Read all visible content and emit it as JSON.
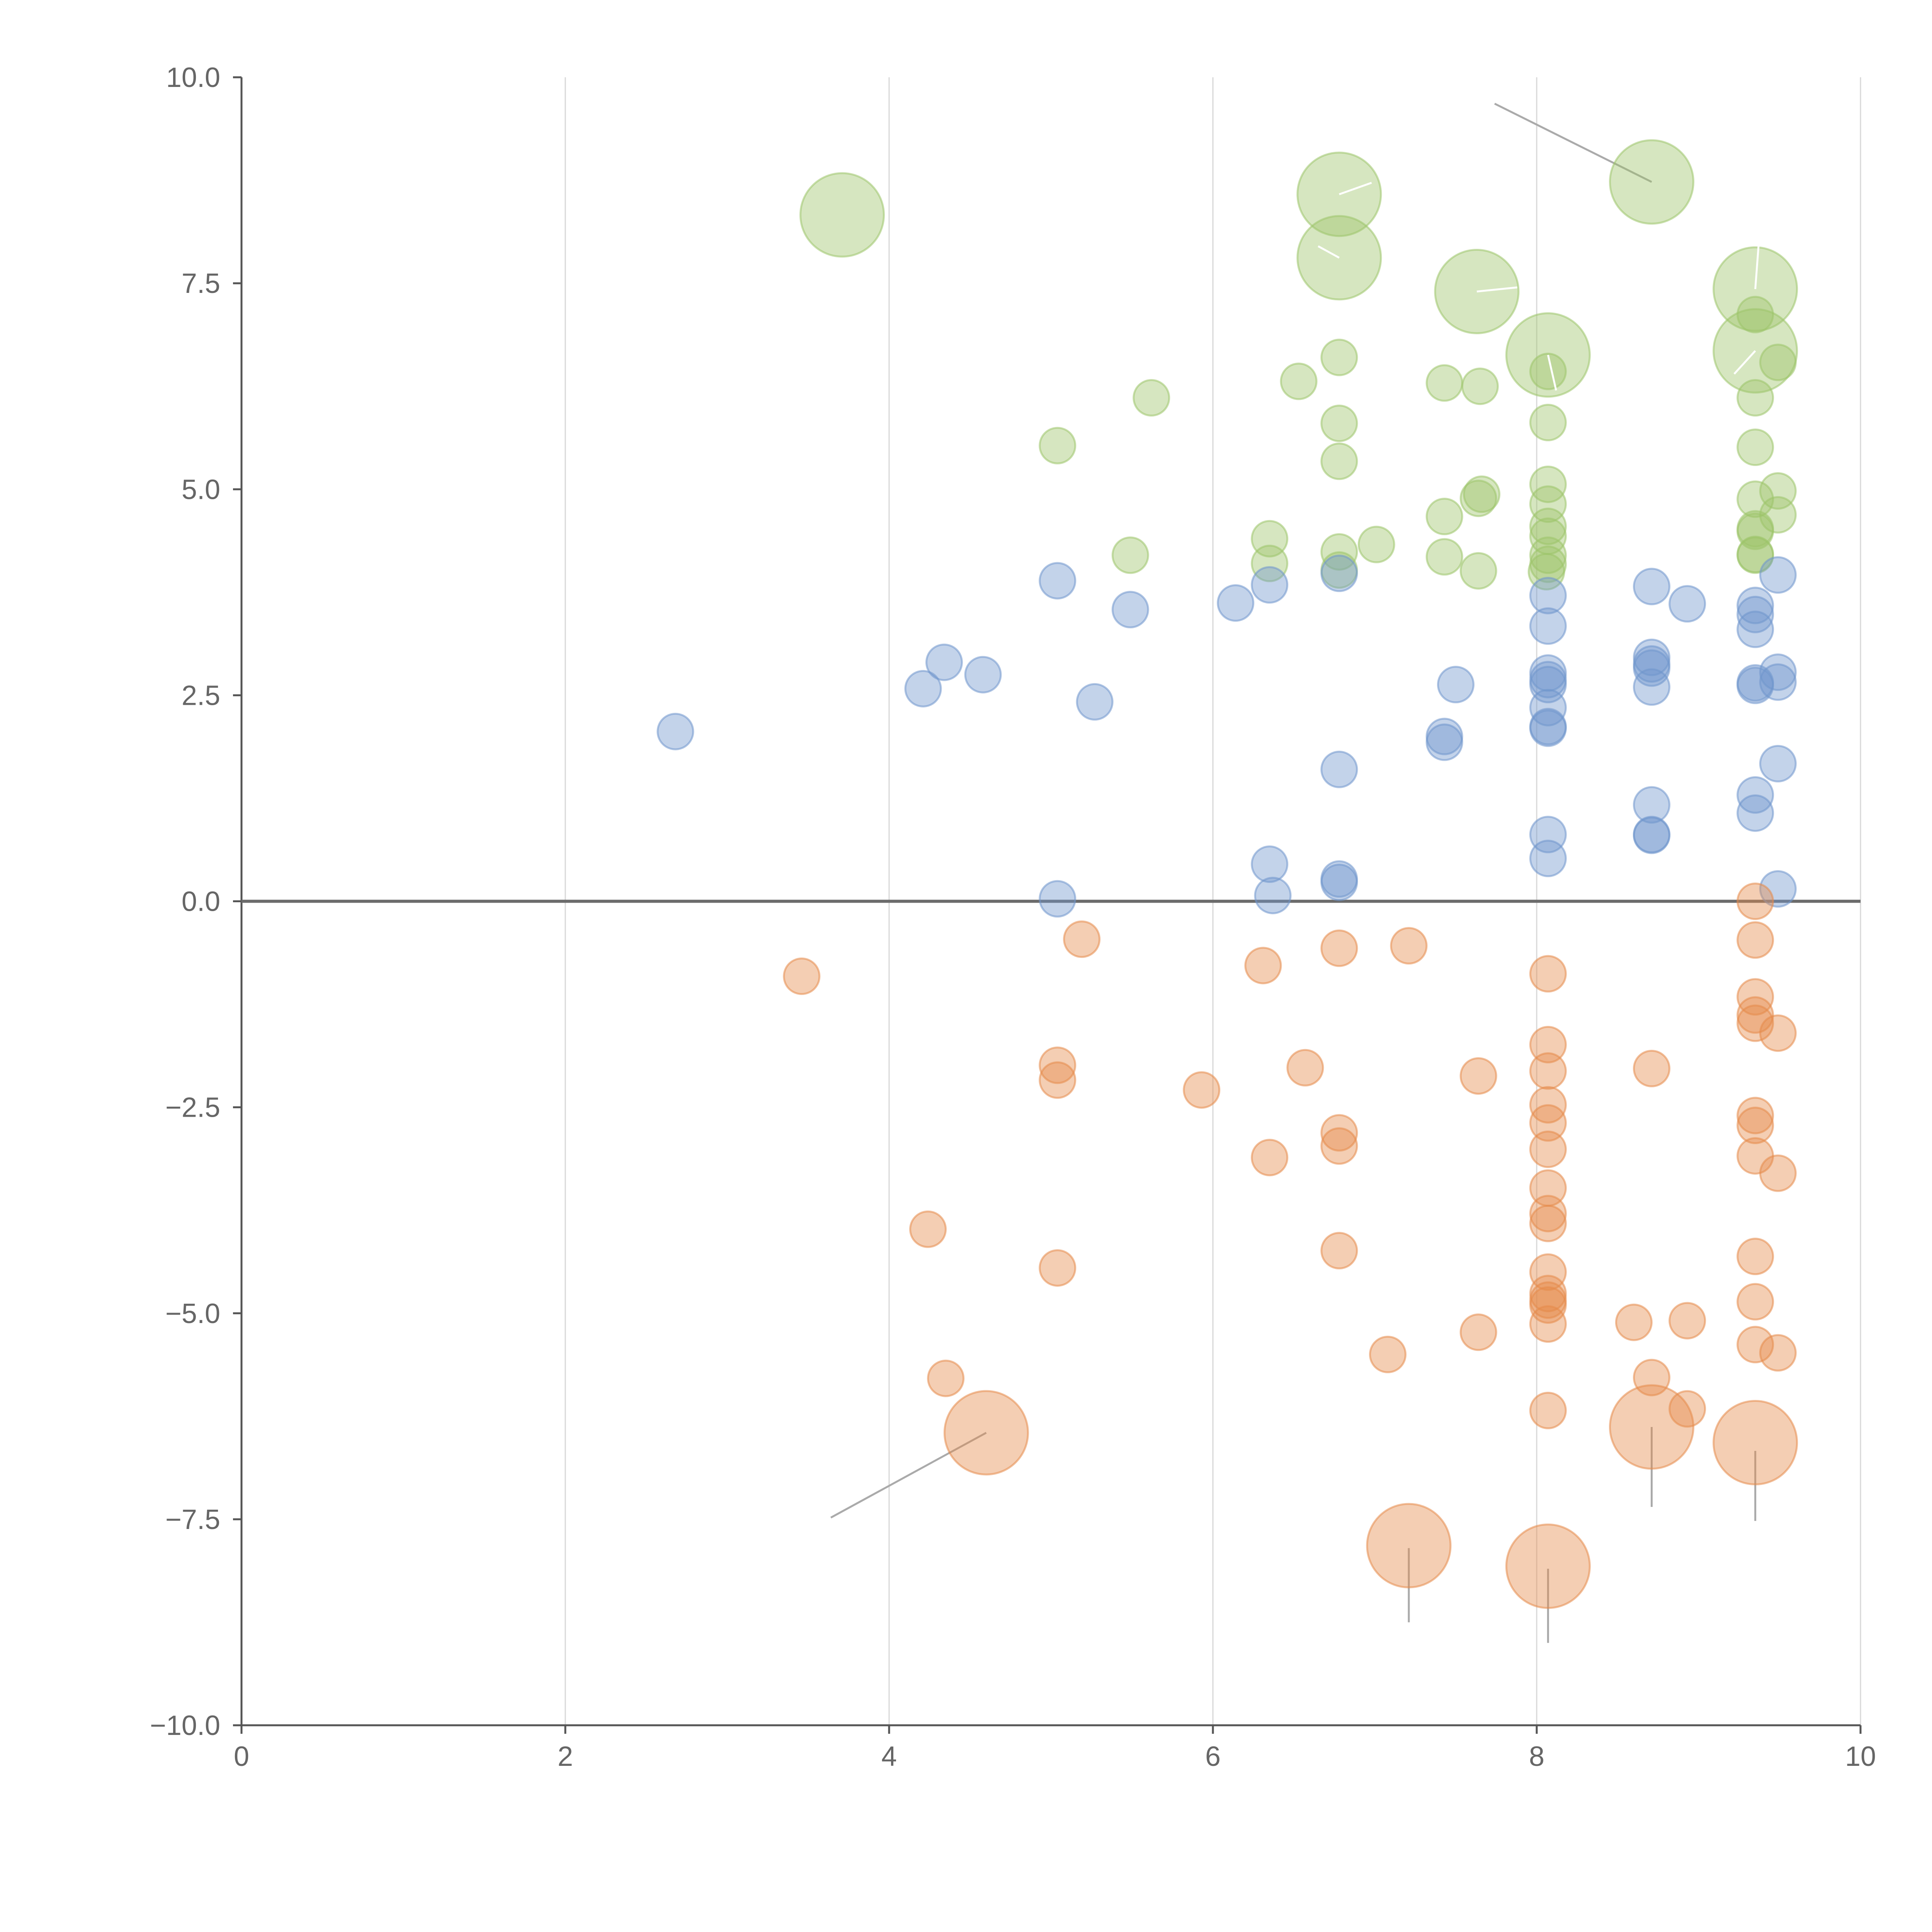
{
  "colors": {
    "positive_high": "#9dc46a",
    "positive_low": "#6f96cc",
    "negative": "#e58b4b",
    "axis": "#555555",
    "grid": "#d7d7d7"
  },
  "chart_data": {
    "type": "scatter",
    "xlim": [
      0,
      10
    ],
    "ylim": [
      -10,
      10
    ],
    "grid": "vertical",
    "xticks": [
      0,
      2,
      4,
      6,
      8,
      10
    ],
    "yticks": [
      -10,
      -7.5,
      -5,
      -2.5,
      0,
      2.5,
      5,
      7.5,
      10
    ],
    "xtick_labels": [
      "0",
      "2",
      "4",
      "6",
      "8",
      "10"
    ],
    "ytick_labels": [
      "−10.0",
      "−7.5",
      "−5.0",
      "−2.5",
      "0.0",
      "2.5",
      "5.0",
      "7.5",
      "10.0"
    ],
    "series": [
      {
        "color": "#9dc46a",
        "points": [
          [
            3.71,
            8.33,
            1
          ],
          [
            6.78,
            8.58,
            1
          ],
          [
            6.78,
            7.81,
            1
          ],
          [
            8.71,
            8.73,
            1
          ],
          [
            7.63,
            7.4,
            1
          ],
          [
            9.35,
            7.43,
            1
          ],
          [
            8.07,
            6.63,
            1
          ],
          [
            9.35,
            6.68,
            1
          ],
          [
            5.62,
            6.11,
            0
          ],
          [
            5.04,
            5.53,
            0
          ],
          [
            6.53,
            6.31,
            0
          ],
          [
            6.78,
            6.6,
            0
          ],
          [
            7.43,
            6.29,
            0
          ],
          [
            7.65,
            6.25,
            0
          ],
          [
            8.07,
            6.43,
            0
          ],
          [
            8.07,
            5.81,
            0
          ],
          [
            9.35,
            7.12,
            0
          ],
          [
            9.49,
            6.54,
            0
          ],
          [
            9.35,
            6.11,
            0
          ],
          [
            9.35,
            5.51,
            0
          ],
          [
            6.78,
            5.8,
            0
          ],
          [
            6.78,
            5.34,
            0
          ],
          [
            7.66,
            4.94,
            0
          ],
          [
            7.64,
            4.89,
            0
          ],
          [
            7.43,
            4.67,
            0
          ],
          [
            8.07,
            5.06,
            0
          ],
          [
            8.07,
            4.82,
            0
          ],
          [
            8.07,
            4.55,
            0
          ],
          [
            8.07,
            4.43,
            0
          ],
          [
            8.07,
            4.2,
            0
          ],
          [
            8.07,
            4.09,
            0
          ],
          [
            8.06,
            4.0,
            0
          ],
          [
            9.35,
            4.88,
            0
          ],
          [
            9.49,
            4.98,
            0
          ],
          [
            9.49,
            4.69,
            0
          ],
          [
            9.35,
            4.49,
            0
          ],
          [
            9.35,
            4.52,
            0
          ],
          [
            9.35,
            4.2,
            0
          ],
          [
            9.35,
            4.21,
            0
          ],
          [
            7.01,
            4.33,
            0
          ],
          [
            6.78,
            4.24,
            0
          ],
          [
            6.78,
            4.02,
            0
          ],
          [
            6.35,
            4.4,
            0
          ],
          [
            6.35,
            4.1,
            0
          ],
          [
            5.49,
            4.2,
            0
          ],
          [
            7.43,
            4.18,
            0
          ],
          [
            7.64,
            4.01,
            0
          ]
        ]
      },
      {
        "color": "#6f96cc",
        "points": [
          [
            2.68,
            2.06,
            0
          ],
          [
            4.21,
            2.58,
            0
          ],
          [
            4.34,
            2.9,
            0
          ],
          [
            4.58,
            2.75,
            0
          ],
          [
            5.04,
            3.89,
            0
          ],
          [
            5.27,
            2.42,
            0
          ],
          [
            5.49,
            3.54,
            0
          ],
          [
            6.14,
            3.62,
            0
          ],
          [
            6.35,
            3.84,
            0
          ],
          [
            6.78,
            3.98,
            0
          ],
          [
            6.78,
            1.6,
            0
          ],
          [
            6.78,
            0.27,
            0
          ],
          [
            6.78,
            0.23,
            0
          ],
          [
            6.35,
            0.45,
            0
          ],
          [
            6.37,
            0.07,
            0
          ],
          [
            5.04,
            0.03,
            0
          ],
          [
            7.43,
            2.0,
            0
          ],
          [
            7.43,
            1.93,
            0
          ],
          [
            7.5,
            2.63,
            0
          ],
          [
            8.07,
            3.71,
            0
          ],
          [
            8.07,
            3.34,
            0
          ],
          [
            8.07,
            2.77,
            0
          ],
          [
            8.07,
            2.69,
            0
          ],
          [
            8.07,
            2.63,
            0
          ],
          [
            8.07,
            2.35,
            0
          ],
          [
            8.07,
            2.12,
            0
          ],
          [
            8.07,
            2.1,
            0
          ],
          [
            8.07,
            0.81,
            0
          ],
          [
            8.07,
            0.52,
            0
          ],
          [
            8.71,
            3.82,
            0
          ],
          [
            8.93,
            3.61,
            0
          ],
          [
            8.71,
            2.96,
            0
          ],
          [
            8.71,
            2.88,
            0
          ],
          [
            8.71,
            2.83,
            0
          ],
          [
            8.71,
            2.6,
            0
          ],
          [
            8.71,
            1.17,
            0
          ],
          [
            8.71,
            0.8,
            0
          ],
          [
            8.71,
            0.81,
            0
          ],
          [
            9.35,
            3.59,
            0
          ],
          [
            9.35,
            3.48,
            0
          ],
          [
            9.35,
            3.3,
            0
          ],
          [
            9.35,
            2.65,
            0
          ],
          [
            9.35,
            2.62,
            0
          ],
          [
            9.49,
            3.96,
            0
          ],
          [
            9.49,
            2.78,
            0
          ],
          [
            9.49,
            2.66,
            0
          ],
          [
            9.49,
            1.67,
            0
          ],
          [
            9.35,
            1.29,
            0
          ],
          [
            9.35,
            1.07,
            0
          ],
          [
            9.49,
            0.15,
            0
          ]
        ]
      },
      {
        "color": "#e58b4b",
        "points": [
          [
            3.46,
            -0.91,
            0
          ],
          [
            5.19,
            -0.46,
            0
          ],
          [
            6.31,
            -0.78,
            0
          ],
          [
            6.78,
            -0.57,
            0
          ],
          [
            7.21,
            -0.54,
            0
          ],
          [
            8.07,
            -0.88,
            0
          ],
          [
            9.35,
            0.0,
            0
          ],
          [
            9.35,
            -0.47,
            0
          ],
          [
            9.35,
            -1.16,
            0
          ],
          [
            9.35,
            -1.38,
            0
          ],
          [
            9.35,
            -1.48,
            0
          ],
          [
            9.49,
            -1.6,
            0
          ],
          [
            5.04,
            -1.99,
            0
          ],
          [
            5.04,
            -2.17,
            0
          ],
          [
            5.93,
            -2.29,
            0
          ],
          [
            6.57,
            -2.02,
            0
          ],
          [
            7.64,
            -2.12,
            0
          ],
          [
            8.07,
            -1.74,
            0
          ],
          [
            8.07,
            -2.06,
            0
          ],
          [
            8.71,
            -2.03,
            0
          ],
          [
            8.07,
            -2.47,
            0
          ],
          [
            8.07,
            -2.69,
            0
          ],
          [
            8.07,
            -3.01,
            0
          ],
          [
            6.78,
            -2.81,
            0
          ],
          [
            6.78,
            -2.97,
            0
          ],
          [
            6.35,
            -3.11,
            0
          ],
          [
            9.35,
            -2.6,
            0
          ],
          [
            9.35,
            -2.72,
            0
          ],
          [
            9.35,
            -3.09,
            0
          ],
          [
            9.49,
            -3.3,
            0
          ],
          [
            8.07,
            -3.48,
            0
          ],
          [
            8.07,
            -3.79,
            0
          ],
          [
            8.07,
            -3.91,
            0
          ],
          [
            4.24,
            -3.98,
            0
          ],
          [
            5.04,
            -4.45,
            0
          ],
          [
            6.78,
            -4.24,
            0
          ],
          [
            8.07,
            -4.5,
            0
          ],
          [
            8.07,
            -4.76,
            0
          ],
          [
            8.07,
            -4.84,
            0
          ],
          [
            8.07,
            -4.9,
            0
          ],
          [
            8.07,
            -5.13,
            0
          ],
          [
            9.35,
            -4.31,
            0
          ],
          [
            9.35,
            -4.86,
            0
          ],
          [
            8.6,
            -5.11,
            0
          ],
          [
            8.93,
            -5.09,
            0
          ],
          [
            7.64,
            -5.23,
            0
          ],
          [
            7.08,
            -5.5,
            0
          ],
          [
            9.35,
            -5.38,
            0
          ],
          [
            9.49,
            -5.48,
            0
          ],
          [
            4.35,
            -5.79,
            0
          ],
          [
            8.71,
            -5.78,
            0
          ],
          [
            8.93,
            -6.16,
            0
          ],
          [
            8.07,
            -6.18,
            0
          ],
          [
            4.6,
            -6.45,
            1
          ],
          [
            8.71,
            -6.38,
            1
          ],
          [
            9.35,
            -6.57,
            1
          ],
          [
            7.21,
            -7.82,
            1
          ],
          [
            8.07,
            -8.07,
            1
          ]
        ]
      }
    ]
  }
}
